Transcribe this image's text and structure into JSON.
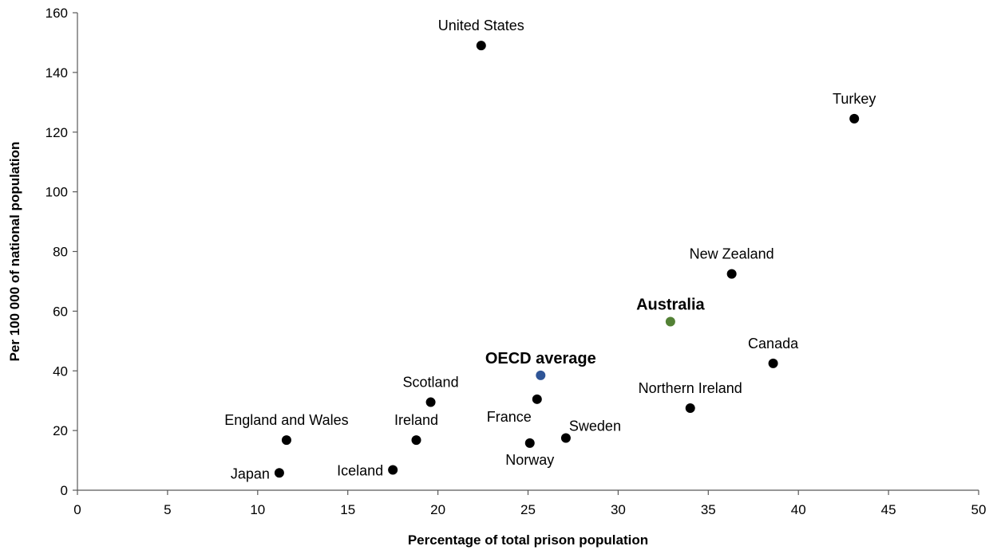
{
  "chart_data": {
    "type": "scatter",
    "title": "",
    "xlabel": "Percentage of total prison population",
    "ylabel": "Per 100 000 of national population",
    "xlim": [
      0,
      50
    ],
    "ylim": [
      0,
      160
    ],
    "xticks": [
      0,
      5,
      10,
      15,
      20,
      25,
      30,
      35,
      40,
      45,
      50
    ],
    "yticks": [
      0,
      20,
      40,
      60,
      80,
      100,
      120,
      140,
      160
    ],
    "grid": false,
    "legend": "none",
    "default_color": "#000000",
    "points": [
      {
        "label": "United States",
        "x": 22.4,
        "y": 149,
        "label_pos": "top"
      },
      {
        "label": "Turkey",
        "x": 43.1,
        "y": 124.5,
        "label_pos": "top"
      },
      {
        "label": "New Zealand",
        "x": 36.3,
        "y": 72.5,
        "label_pos": "top"
      },
      {
        "label": "Australia",
        "x": 32.9,
        "y": 56.5,
        "label_pos": "top",
        "color": "#538135",
        "highlight": true
      },
      {
        "label": "Canada",
        "x": 38.6,
        "y": 42.5,
        "label_pos": "top"
      },
      {
        "label": "OECD average",
        "x": 25.7,
        "y": 38.5,
        "label_pos": "top",
        "color": "#2F5597",
        "highlight": true
      },
      {
        "label": "Scotland",
        "x": 19.6,
        "y": 29.5,
        "label_pos": "top"
      },
      {
        "label": "France",
        "x": 25.5,
        "y": 30.5,
        "label_pos": "bottom-left"
      },
      {
        "label": "Northern Ireland",
        "x": 34.0,
        "y": 27.5,
        "label_pos": "top"
      },
      {
        "label": "England and Wales",
        "x": 11.6,
        "y": 16.8,
        "label_pos": "top"
      },
      {
        "label": "Ireland",
        "x": 18.8,
        "y": 16.8,
        "label_pos": "top"
      },
      {
        "label": "Sweden",
        "x": 27.1,
        "y": 17.5,
        "label_pos": "top-right"
      },
      {
        "label": "Norway",
        "x": 25.1,
        "y": 15.8,
        "label_pos": "bottom"
      },
      {
        "label": "Iceland",
        "x": 17.5,
        "y": 6.8,
        "label_pos": "left"
      },
      {
        "label": "Japan",
        "x": 11.2,
        "y": 5.8,
        "label_pos": "left"
      }
    ]
  }
}
